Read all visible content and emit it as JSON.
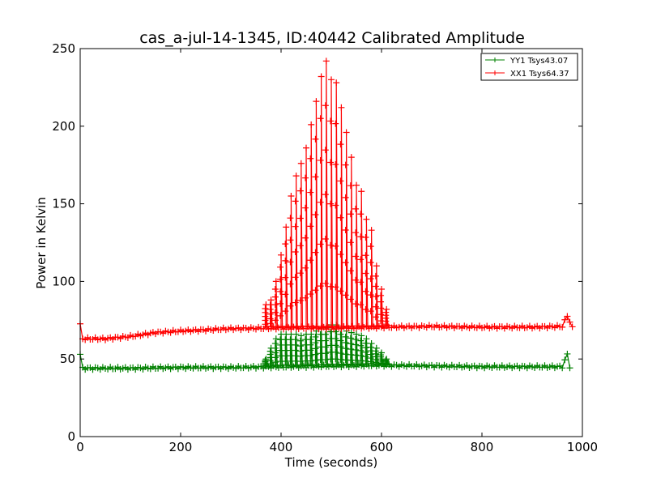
{
  "chart_data": {
    "type": "line",
    "title": "cas_a-jul-14-1345, ID:40442 Calibrated Amplitude",
    "xlabel": "Time (seconds)",
    "ylabel": "Power in Kelvin",
    "xlim": [
      0,
      1000
    ],
    "ylim": [
      0,
      250
    ],
    "xticks": [
      "0",
      "200",
      "400",
      "600",
      "800",
      "1000"
    ],
    "yticks": [
      "0",
      "50",
      "100",
      "150",
      "200",
      "250"
    ],
    "grid": false,
    "legend_position": "top-right",
    "marker": "+",
    "series": [
      {
        "name": "YY1 Tsys43.07",
        "color": "#008000",
        "baseline": [
          [
            0,
            53
          ],
          [
            5,
            44
          ],
          [
            100,
            44
          ],
          [
            200,
            44.5
          ],
          [
            300,
            44.5
          ],
          [
            400,
            45
          ],
          [
            500,
            45.5
          ],
          [
            600,
            46
          ],
          [
            700,
            45.5
          ],
          [
            800,
            45
          ],
          [
            900,
            45
          ],
          [
            960,
            45
          ],
          [
            970,
            53
          ],
          [
            975,
            45
          ]
        ],
        "spike_x": [
          370,
          380,
          390,
          400,
          410,
          420,
          430,
          440,
          450,
          460,
          470,
          480,
          490,
          500,
          510,
          520,
          530,
          540,
          550,
          560,
          570,
          580,
          590,
          600,
          610
        ],
        "spike_peak": [
          50,
          57,
          63,
          66,
          66,
          66,
          66,
          65,
          66,
          66,
          68,
          70,
          70,
          72,
          72,
          70,
          68,
          67,
          66,
          65,
          63,
          60,
          57,
          54,
          50
        ]
      },
      {
        "name": "XX1 Tsys64.37",
        "color": "#ff0000",
        "baseline": [
          [
            0,
            72
          ],
          [
            5,
            63
          ],
          [
            50,
            63
          ],
          [
            100,
            64.5
          ],
          [
            150,
            67
          ],
          [
            200,
            68
          ],
          [
            300,
            69.5
          ],
          [
            400,
            70
          ],
          [
            500,
            70
          ],
          [
            600,
            70.5
          ],
          [
            700,
            71
          ],
          [
            800,
            70.5
          ],
          [
            900,
            70.5
          ],
          [
            960,
            71
          ],
          [
            970,
            78
          ],
          [
            980,
            70
          ]
        ],
        "spike_x": [
          370,
          380,
          390,
          400,
          410,
          420,
          430,
          440,
          450,
          460,
          470,
          480,
          490,
          500,
          510,
          520,
          530,
          540,
          550,
          560,
          570,
          580,
          590,
          600,
          610
        ],
        "spike_peak": [
          85,
          88,
          100,
          117,
          135,
          155,
          168,
          176,
          186,
          201,
          216,
          232,
          242,
          230,
          228,
          212,
          196,
          180,
          162,
          158,
          140,
          133,
          110,
          95,
          82
        ]
      }
    ]
  }
}
